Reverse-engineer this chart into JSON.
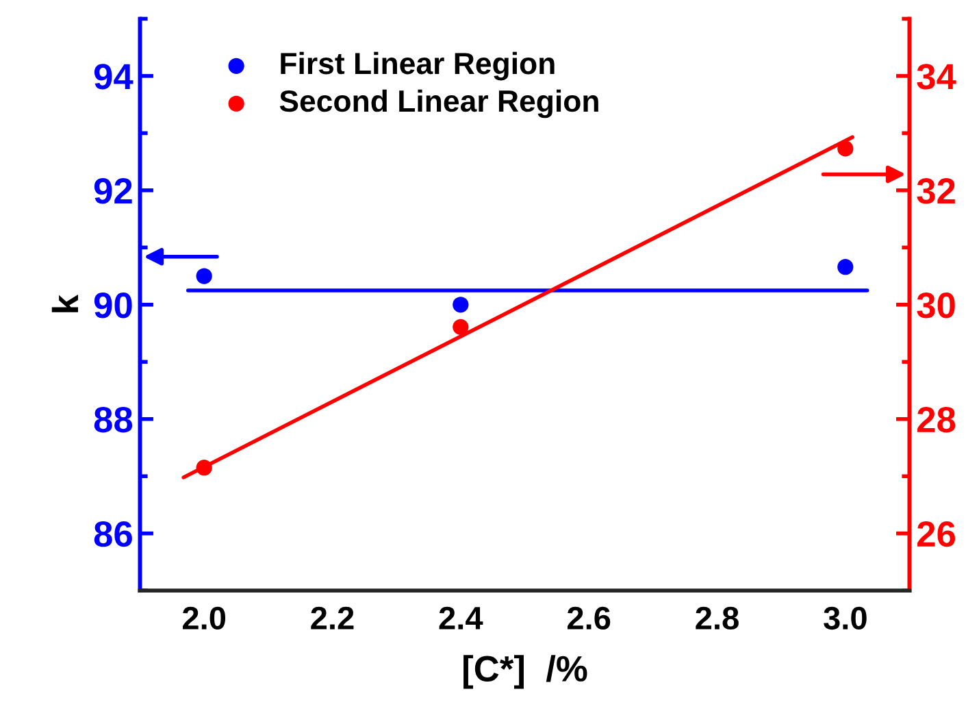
{
  "chart_data": {
    "type": "scatter",
    "xlabel": "[C*]  /%",
    "ylabel": "k",
    "xlim": [
      1.9,
      3.1
    ],
    "xticks": [
      {
        "value": 2,
        "label": "2.0"
      },
      2.2,
      2.4,
      2.6,
      2.8,
      {
        "value": 3,
        "label": "3.0"
      }
    ],
    "ylim": [
      85,
      95
    ],
    "yticks": [
      86,
      88,
      90,
      92,
      94
    ],
    "y2lim": [
      25,
      35
    ],
    "y2ticks": [
      26,
      28,
      30,
      32,
      34
    ],
    "legend": "top left",
    "grid": false,
    "series": [
      {
        "name": "First Linear Region",
        "marker": "circle",
        "color": "#0000ff",
        "x": [
          2.0,
          2.4,
          3.0
        ],
        "values": [
          90.5,
          90.0,
          90.66
        ]
      },
      {
        "name": "Second Linear Region",
        "marker": "circle",
        "axis": "y2",
        "color": "#ff0000",
        "x": [
          2.0,
          2.4,
          3.0
        ],
        "values": [
          27.15,
          29.61,
          32.73
        ]
      },
      {
        "type": "line",
        "color": "#0000ff",
        "x": [
          1.975,
          3.034
        ],
        "values": [
          90.25,
          90.25
        ]
      },
      {
        "type": "line",
        "axis": "y2",
        "color": "#ff0000",
        "x": [
          1.968,
          3.011
        ],
        "values": [
          26.98,
          32.93
        ]
      }
    ]
  }
}
